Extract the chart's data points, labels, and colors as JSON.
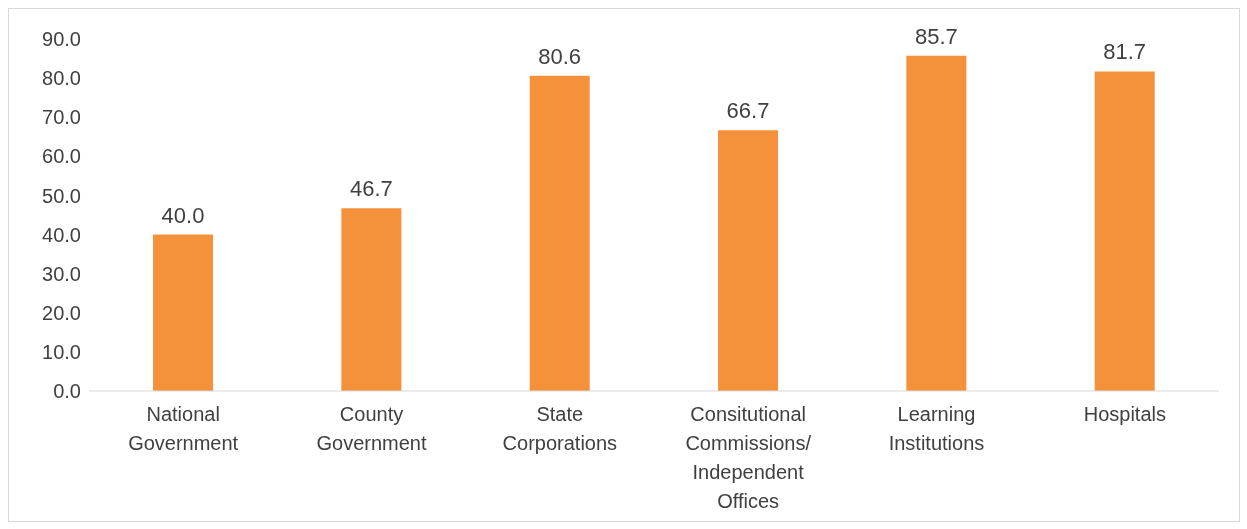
{
  "chart_data": {
    "type": "bar",
    "categories": [
      "National Government",
      "County Government",
      "State Corporations",
      "Consitutional Commissions/ Independent Offices",
      "Learning Institutions",
      "Hospitals"
    ],
    "values": [
      40.0,
      46.7,
      80.6,
      66.7,
      85.7,
      81.7
    ],
    "value_labels": [
      "40.0",
      "46.7",
      "80.6",
      "66.7",
      "85.7",
      "81.7"
    ],
    "color": "#f5913b",
    "ylim": [
      0,
      90
    ],
    "yticks": [
      {
        "value": 0,
        "label": "0.0"
      },
      {
        "value": 10,
        "label": "10.0"
      },
      {
        "value": 20,
        "label": "20.0"
      },
      {
        "value": 30,
        "label": "30.0"
      },
      {
        "value": 40,
        "label": "40.0"
      },
      {
        "value": 50,
        "label": "50.0"
      },
      {
        "value": 60,
        "label": "60.0"
      },
      {
        "value": 70,
        "label": "70.0"
      },
      {
        "value": 80,
        "label": "80.0"
      },
      {
        "value": 90,
        "label": "90.0"
      }
    ],
    "grid": false,
    "legend": false
  }
}
